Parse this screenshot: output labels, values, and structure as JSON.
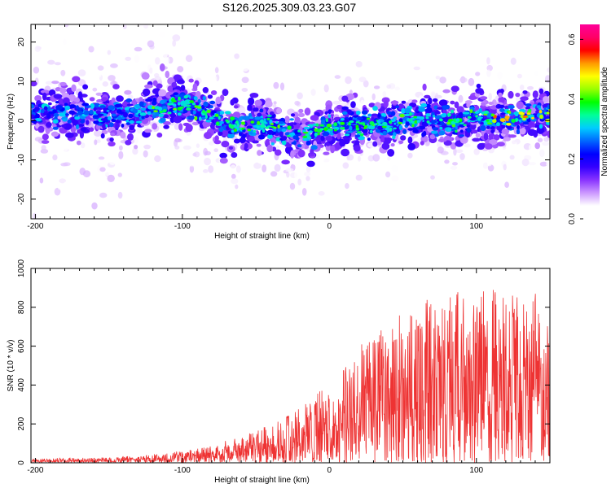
{
  "title": "S126.2025.309.03.23.G07",
  "chart_data": [
    {
      "type": "heatmap",
      "xlabel": "Height of straight line (km)",
      "ylabel": "Frequency (Hz)",
      "xlim": [
        -203,
        150
      ],
      "ylim": [
        -25,
        24.5
      ],
      "xticks": [
        -200,
        -100,
        0,
        100
      ],
      "yticks": [
        -20,
        -10,
        0,
        10,
        20
      ],
      "colorbar": {
        "label": "Normalized spectral amplitude",
        "range": [
          0.0,
          0.65
        ],
        "ticks": [
          0.0,
          0.2,
          0.4,
          0.6
        ],
        "colors": [
          "#ffffff",
          "#ffffff",
          "#cc99ff",
          "#8833ff",
          "#3300ff",
          "#0000ff",
          "#0066ff",
          "#00ccff",
          "#00ff99",
          "#00ff00",
          "#99ff00",
          "#ffff00",
          "#ff9900",
          "#ff0000",
          "#ff0066",
          "#ff0099"
        ]
      },
      "ridge": {
        "height_km": [
          -200,
          -180,
          -160,
          -140,
          -130,
          -120,
          -110,
          -100,
          -90,
          -80,
          -70,
          -60,
          -50,
          -40,
          -30,
          -20,
          -10,
          0,
          10,
          20,
          30,
          40,
          50,
          60,
          70,
          80,
          90,
          100,
          110,
          120,
          130,
          140,
          150
        ],
        "frequency_hz": [
          2,
          2,
          1.5,
          1.5,
          2,
          3,
          4,
          4,
          3,
          1,
          -1,
          -2,
          -1,
          -1,
          -3,
          -4,
          -3,
          -1,
          -1,
          -1,
          -1,
          -1,
          0,
          0,
          1,
          0,
          0,
          1,
          0,
          0,
          1,
          1.5,
          2
        ]
      }
    },
    {
      "type": "line",
      "xlabel": "Height of straight line (km)",
      "ylabel": "SNR (10 * v/v)",
      "xlim": [
        -203,
        150
      ],
      "ylim": [
        0,
        1000
      ],
      "xticks": [
        -200,
        -100,
        0,
        100
      ],
      "yticks": [
        0,
        200,
        400,
        600,
        800,
        1000
      ],
      "color": "#ee3333",
      "envelope": {
        "height_km": [
          -203,
          -150,
          -120,
          -100,
          -80,
          -60,
          -40,
          -20,
          0,
          20,
          40,
          60,
          80,
          100,
          120,
          140,
          150
        ],
        "snr_max": [
          20,
          25,
          40,
          60,
          90,
          130,
          200,
          280,
          420,
          600,
          720,
          820,
          900,
          900,
          900,
          880,
          750
        ]
      }
    }
  ]
}
